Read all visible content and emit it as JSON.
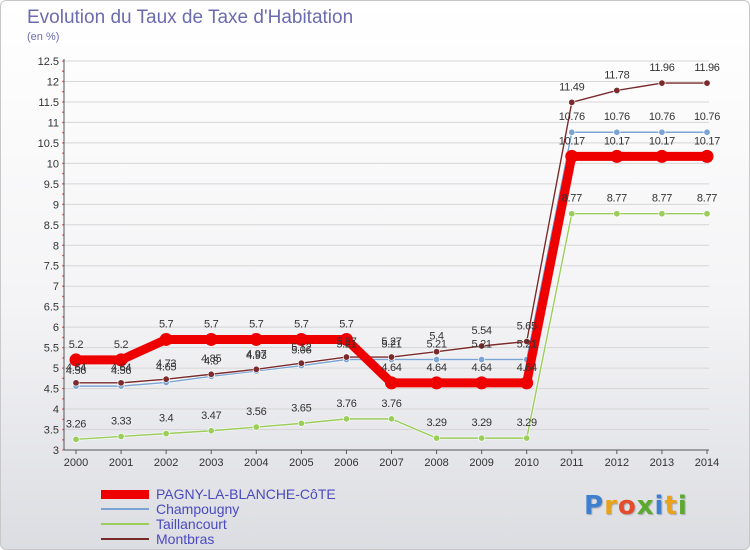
{
  "title": "Evolution du Taux de Taxe d'Habitation",
  "subtitle": "(en %)",
  "logo": {
    "text": "Proxiti",
    "letters": [
      {
        "ch": "P",
        "color": "#3f7fd0"
      },
      {
        "ch": "r",
        "color": "#e8a21b"
      },
      {
        "ch": "o",
        "color": "#e64b2a"
      },
      {
        "ch": "x",
        "color": "#5aaa2e"
      },
      {
        "ch": "i",
        "color": "#3f7fd0"
      },
      {
        "ch": "t",
        "color": "#e8a21b"
      },
      {
        "ch": "i",
        "color": "#5aaa2e"
      }
    ]
  },
  "chart_data": {
    "type": "line",
    "title": "Evolution du Taux de Taxe d'Habitation",
    "ylabel": "(en %)",
    "xlabel": "",
    "ylim": [
      3,
      12.5
    ],
    "ytick_step": 0.5,
    "yticks": [
      "3",
      "3.5",
      "4",
      "4.5",
      "5",
      "5.5",
      "6",
      "6.5",
      "7",
      "7.5",
      "8",
      "8.5",
      "9",
      "9.5",
      "10",
      "10.5",
      "11",
      "11.5",
      "12",
      "12.5"
    ],
    "categories": [
      "2000",
      "2001",
      "2002",
      "2003",
      "2004",
      "2005",
      "2006",
      "2007",
      "2008",
      "2009",
      "2010",
      "2011",
      "2012",
      "2013",
      "2014"
    ],
    "legend_position": "bottom-left",
    "series": [
      {
        "name": "PAGNY-LA-BLANCHE-CôTE",
        "color": "#ee0000",
        "values": [
          5.2,
          5.2,
          5.7,
          5.7,
          5.7,
          5.7,
          5.7,
          4.64,
          4.64,
          4.64,
          4.64,
          10.17,
          10.17,
          10.17,
          10.17
        ],
        "labels": [
          "5.2",
          "5.2",
          "5.7",
          "5.7",
          "5.7",
          "5.7",
          "5.7",
          "4.64",
          "4.64",
          "4.64",
          "4.64",
          "10.17",
          "10.17",
          "10.17",
          "10.17"
        ]
      },
      {
        "name": "Champougny",
        "color": "#7ba4d4",
        "values": [
          4.56,
          4.56,
          4.65,
          4.8,
          4.93,
          5.06,
          5.21,
          5.21,
          5.21,
          5.21,
          5.21,
          10.76,
          10.76,
          10.76,
          10.76
        ],
        "labels": [
          "4.56",
          "4.56",
          "4.65",
          "4.8",
          "4.93",
          "5.06",
          "5.21",
          "5.21",
          "5.21",
          "5.21",
          "5.21",
          "10.76",
          "10.76",
          "10.76",
          "10.76"
        ]
      },
      {
        "name": "Taillancourt",
        "color": "#9acd5a",
        "values": [
          3.26,
          3.33,
          3.4,
          3.47,
          3.56,
          3.65,
          3.76,
          3.76,
          3.29,
          3.29,
          3.29,
          8.77,
          8.77,
          8.77,
          8.77
        ],
        "labels": [
          "3.26",
          "3.33",
          "3.4",
          "3.47",
          "3.56",
          "3.65",
          "3.76",
          "3.76",
          "3.29",
          "3.29",
          "3.29",
          "8.77",
          "8.77",
          "8.77",
          "8.77"
        ]
      },
      {
        "name": "Montbras",
        "color": "#7a2a2a",
        "values": [
          4.64,
          4.64,
          4.73,
          4.85,
          4.97,
          5.12,
          5.27,
          5.27,
          5.4,
          5.54,
          5.65,
          11.49,
          11.78,
          11.96,
          11.96
        ],
        "labels": [
          "4.64",
          "4.64",
          "4.73",
          "4.85",
          "4.97",
          "5.12",
          "5.27",
          "5.27",
          "5.4",
          "5.54",
          "5.65",
          "11.49",
          "11.78",
          "11.96",
          "11.96"
        ]
      }
    ]
  }
}
